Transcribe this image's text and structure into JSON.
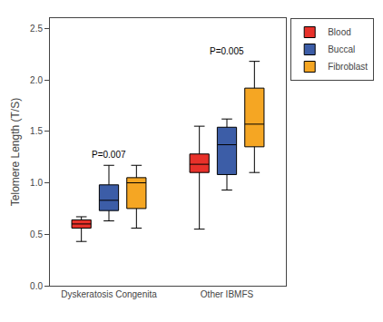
{
  "chart_data": {
    "type": "box",
    "categories": [
      "Dyskeratosis Congenita",
      "Other IBMFS"
    ],
    "series": [
      {
        "name": "Blood",
        "color": "#e8312a",
        "whislo": [
          0.43,
          0.55
        ],
        "q1": [
          0.56,
          1.1
        ],
        "med": [
          0.6,
          1.18
        ],
        "q3": [
          0.64,
          1.28
        ],
        "whishi": [
          0.67,
          1.55
        ]
      },
      {
        "name": "Buccal",
        "color": "#3c5da7",
        "whislo": [
          0.63,
          0.93
        ],
        "q1": [
          0.73,
          1.08
        ],
        "med": [
          0.83,
          1.37
        ],
        "q3": [
          0.98,
          1.54
        ],
        "whishi": [
          1.17,
          1.62
        ]
      },
      {
        "name": "Fibroblast",
        "color": "#f5a623",
        "whislo": [
          0.56,
          1.1
        ],
        "q1": [
          0.75,
          1.35
        ],
        "med": [
          1.0,
          1.57
        ],
        "q3": [
          1.05,
          1.92
        ],
        "whishi": [
          1.17,
          2.18
        ]
      }
    ],
    "ylabel": "Telomere Length (T/S)",
    "annotations": [
      "P=0.007",
      "P=0.005"
    ],
    "ylim": [
      0.0,
      2.6
    ],
    "yticks": [
      0.0,
      0.5,
      1.0,
      1.5,
      2.0,
      2.5
    ],
    "grid": false,
    "legend": "right"
  }
}
